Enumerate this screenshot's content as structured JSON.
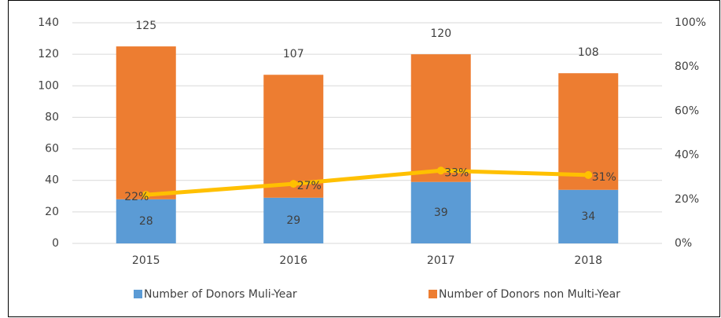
{
  "chart_data": {
    "type": "bar",
    "categories": [
      "2015",
      "2016",
      "2017",
      "2018"
    ],
    "stacked": true,
    "series": [
      {
        "name": "Number of Donors Muli-Year",
        "color": "#5b9bd5",
        "values": [
          28,
          29,
          39,
          34
        ]
      },
      {
        "name": "Number of Donors non Multi-Year",
        "color": "#ed7d31",
        "values": [
          97,
          78,
          81,
          74
        ]
      },
      {
        "type": "line",
        "axis": "y2",
        "color": "#ffc000",
        "values": [
          22,
          27,
          33,
          31
        ],
        "value_labels": [
          "22%",
          "27%",
          "33%",
          "31%"
        ]
      }
    ],
    "totals": [
      125,
      107,
      120,
      108
    ],
    "ylim": [
      0,
      140
    ],
    "yticks": [
      0,
      20,
      40,
      60,
      80,
      100,
      120,
      140
    ],
    "y2lim": [
      0,
      100
    ],
    "y2ticks": [
      {
        "value": 0,
        "label": "0%"
      },
      {
        "value": 20,
        "label": "20%"
      },
      {
        "value": 40,
        "label": "40%"
      },
      {
        "value": 60,
        "label": "60%"
      },
      {
        "value": 80,
        "label": "80%"
      },
      {
        "value": 100,
        "label": "100%"
      }
    ],
    "grid": true,
    "legend": "bottom"
  }
}
